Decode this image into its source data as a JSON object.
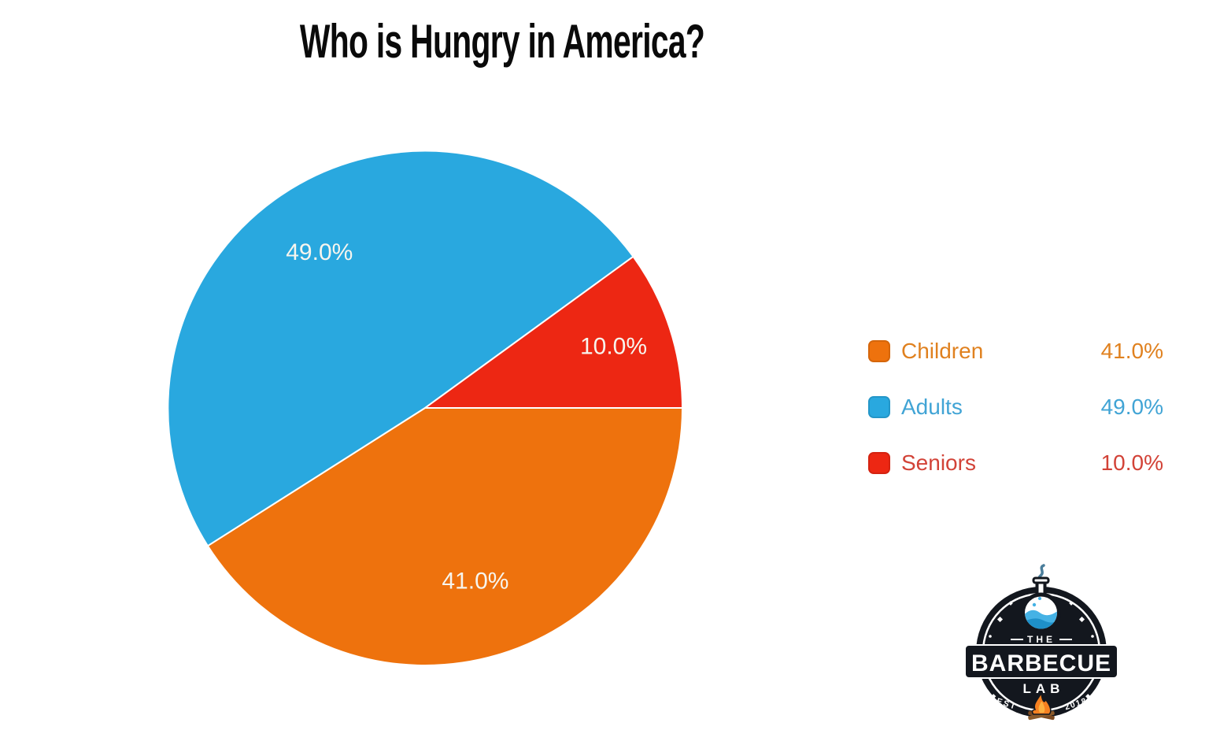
{
  "chart_data": {
    "type": "pie",
    "title": "Who is Hungry in America?",
    "legend_position": "right",
    "start_angle_deg": 0,
    "direction": "clockwise",
    "slice_label_color": "#F7F5EE",
    "series": [
      {
        "name": "Children",
        "value": 41.0,
        "value_label": "41.0%",
        "color": "#EE720D",
        "text_color": "#E0811F"
      },
      {
        "name": "Adults",
        "value": 49.0,
        "value_label": "49.0%",
        "color": "#29A8DF",
        "text_color": "#41A4D5"
      },
      {
        "name": "Seniors",
        "value": 10.0,
        "value_label": "10.0%",
        "color": "#ED2713",
        "text_color": "#D24237"
      }
    ]
  },
  "logo": {
    "name": "The Barbecue Lab badge",
    "line_the": "THE",
    "line_barbecue": "BARBECUE",
    "line_lab": "LAB",
    "est": "EST",
    "year": "2018",
    "badge_color": "#13171E",
    "liquid_color": "#45B2E5"
  }
}
